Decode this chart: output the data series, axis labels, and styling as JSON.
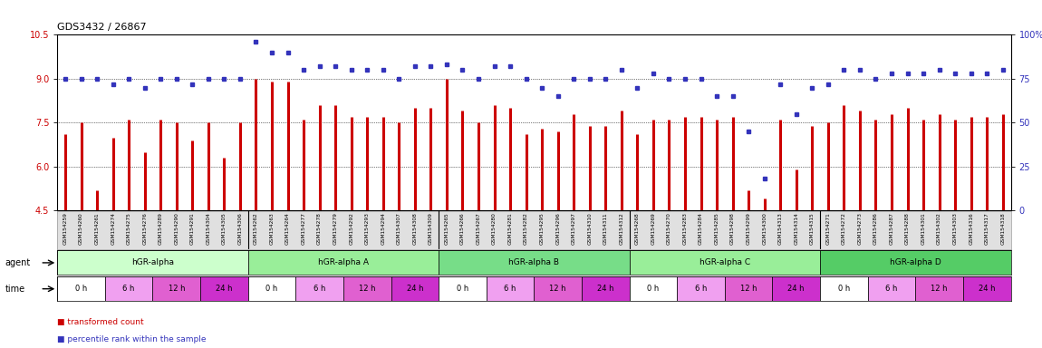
{
  "title": "GDS3432 / 26867",
  "sample_ids": [
    "GSM154259",
    "GSM154260",
    "GSM154261",
    "GSM154274",
    "GSM154275",
    "GSM154276",
    "GSM154289",
    "GSM154290",
    "GSM154291",
    "GSM154304",
    "GSM154305",
    "GSM154306",
    "GSM154262",
    "GSM154263",
    "GSM154264",
    "GSM154277",
    "GSM154278",
    "GSM154279",
    "GSM154292",
    "GSM154293",
    "GSM154294",
    "GSM154307",
    "GSM154308",
    "GSM154309",
    "GSM154265",
    "GSM154266",
    "GSM154267",
    "GSM154280",
    "GSM154281",
    "GSM154282",
    "GSM154295",
    "GSM154296",
    "GSM154297",
    "GSM154310",
    "GSM154311",
    "GSM154312",
    "GSM154268",
    "GSM154269",
    "GSM154270",
    "GSM154283",
    "GSM154284",
    "GSM154285",
    "GSM154298",
    "GSM154299",
    "GSM154300",
    "GSM154313",
    "GSM154314",
    "GSM154315",
    "GSM154271",
    "GSM154272",
    "GSM154273",
    "GSM154286",
    "GSM154287",
    "GSM154288",
    "GSM154301",
    "GSM154302",
    "GSM154303",
    "GSM154316",
    "GSM154317",
    "GSM154318"
  ],
  "bar_values": [
    7.1,
    7.5,
    5.2,
    7.0,
    7.6,
    6.5,
    7.6,
    7.5,
    6.9,
    7.5,
    6.3,
    7.5,
    9.0,
    8.9,
    8.9,
    7.6,
    8.1,
    8.1,
    7.7,
    7.7,
    7.7,
    7.5,
    8.0,
    8.0,
    9.0,
    7.9,
    7.5,
    8.1,
    8.0,
    7.1,
    7.3,
    7.2,
    7.8,
    7.4,
    7.4,
    7.9,
    7.1,
    7.6,
    7.6,
    7.7,
    7.7,
    7.6,
    7.7,
    5.2,
    4.9,
    7.6,
    5.9,
    7.4,
    7.5,
    8.1,
    7.9,
    7.6,
    7.8,
    8.0,
    7.6,
    7.8,
    7.6,
    7.7,
    7.7,
    7.8
  ],
  "dot_values": [
    75,
    75,
    75,
    72,
    75,
    70,
    75,
    75,
    72,
    75,
    75,
    75,
    96,
    90,
    90,
    80,
    82,
    82,
    80,
    80,
    80,
    75,
    82,
    82,
    83,
    80,
    75,
    82,
    82,
    75,
    70,
    65,
    75,
    75,
    75,
    80,
    70,
    78,
    75,
    75,
    75,
    65,
    65,
    45,
    18,
    72,
    55,
    70,
    72,
    80,
    80,
    75,
    78,
    78,
    78,
    80,
    78,
    78,
    78,
    80
  ],
  "agents": [
    {
      "label": "hGR-alpha",
      "start": 0,
      "end": 12,
      "color": "#ccffcc"
    },
    {
      "label": "hGR-alpha A",
      "start": 12,
      "end": 24,
      "color": "#99ee99"
    },
    {
      "label": "hGR-alpha B",
      "start": 24,
      "end": 36,
      "color": "#77dd88"
    },
    {
      "label": "hGR-alpha C",
      "start": 36,
      "end": 48,
      "color": "#99ee99"
    },
    {
      "label": "hGR-alpha D",
      "start": 48,
      "end": 60,
      "color": "#55cc66"
    }
  ],
  "time_labels": [
    "0 h",
    "6 h",
    "12 h",
    "24 h"
  ],
  "time_colors": [
    "#ffffff",
    "#f0a0f0",
    "#e060d0",
    "#cc30cc"
  ],
  "ylim_left": [
    4.5,
    10.5
  ],
  "ylim_right": [
    0,
    100
  ],
  "yticks_left": [
    4.5,
    6.0,
    7.5,
    9.0,
    10.5
  ],
  "yticks_right": [
    0,
    25,
    50,
    75,
    100
  ],
  "bar_color": "#cc0000",
  "dot_color": "#3333bb",
  "bg_color": "#ffffff",
  "label_bg": "#e0e0e0"
}
